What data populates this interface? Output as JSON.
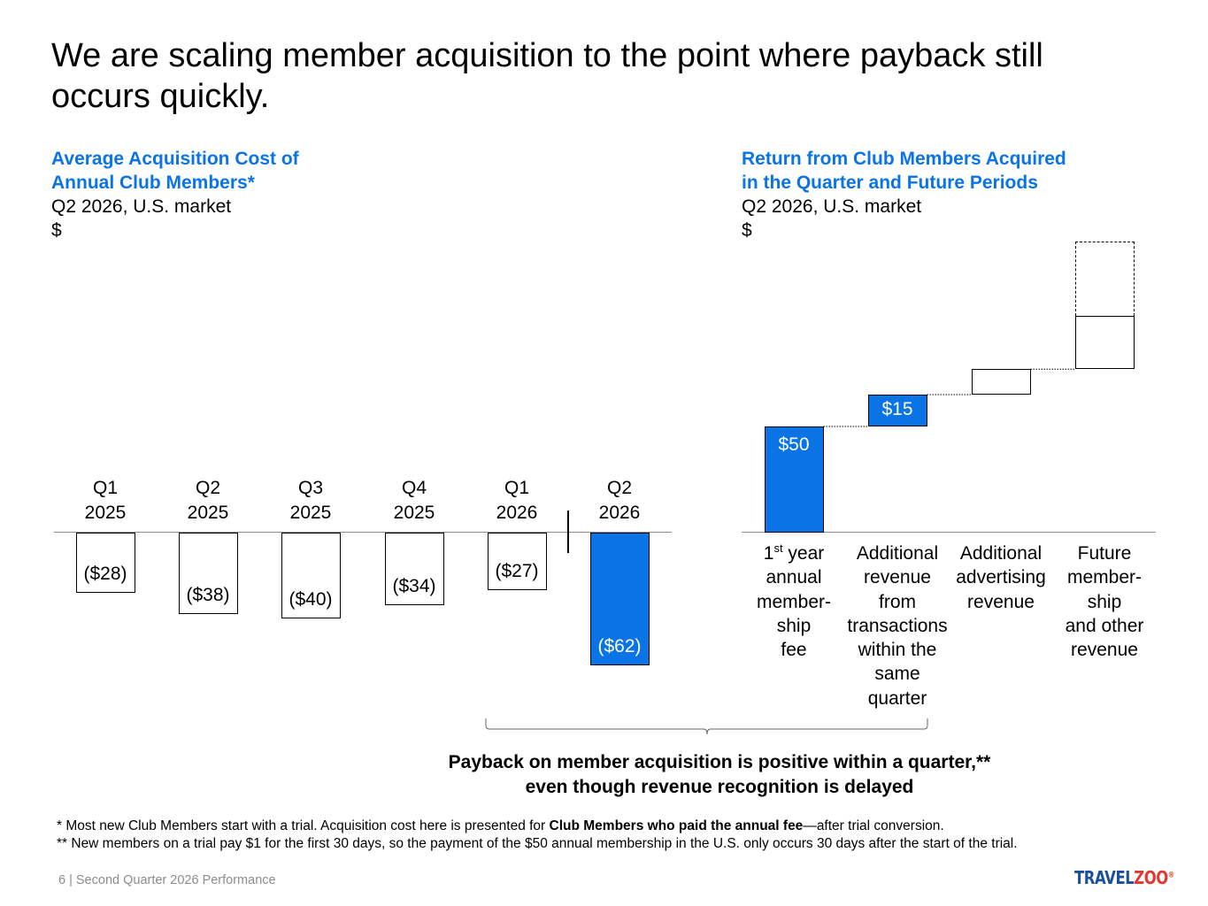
{
  "slide": {
    "title": "We are scaling member acquisition to the point where payback still occurs quickly."
  },
  "left_panel": {
    "heading_line1": "Average Acquisition Cost of",
    "heading_line2": "Annual Club Members*",
    "subtitle": "Q2 2026, U.S. market",
    "unit": "$"
  },
  "right_panel": {
    "heading_line1": "Return from Club Members Acquired",
    "heading_line2": "in the Quarter and Future Periods",
    "subtitle": "Q2 2026, U.S. market",
    "unit": "$"
  },
  "chart_data": [
    {
      "type": "bar",
      "title": "Average Acquisition Cost of Annual Club Members*",
      "categories": [
        {
          "q": "Q1",
          "y": "2025"
        },
        {
          "q": "Q2",
          "y": "2025"
        },
        {
          "q": "Q3",
          "y": "2025"
        },
        {
          "q": "Q4",
          "y": "2025"
        },
        {
          "q": "Q1",
          "y": "2026"
        },
        {
          "q": "Q2",
          "y": "2026"
        }
      ],
      "values": [
        -28,
        -38,
        -40,
        -34,
        -27,
        -62
      ],
      "value_labels": [
        "($28)",
        "($38)",
        "($40)",
        "($34)",
        "($27)",
        "($62)"
      ],
      "highlight_index": 5,
      "highlight_color": "#0a74e6",
      "separator_before_index": 5
    },
    {
      "type": "bar",
      "subtype": "waterfall",
      "title": "Return from Club Members Acquired in the Quarter and Future Periods",
      "categories": [
        [
          "1st year",
          "annual",
          "member-",
          "ship",
          "fee"
        ],
        [
          "Additional",
          "revenue",
          "from",
          "transactions",
          "within the",
          "same",
          "quarter"
        ],
        [
          "Additional",
          "advertising",
          "revenue"
        ],
        [
          "Future",
          "member-",
          "ship",
          "and other",
          "revenue"
        ]
      ],
      "values": [
        50,
        15,
        12,
        25
      ],
      "value_labels": [
        "$50",
        "$15",
        "",
        ""
      ],
      "future_dashed_extra": 35,
      "colors": [
        "#0a74e6",
        "#0a74e6",
        "#ffffff",
        "#ffffff"
      ]
    }
  ],
  "brace_note": {
    "line1": "Payback on member acquisition is positive within a quarter,**",
    "line2": "even though revenue recognition is delayed"
  },
  "footnotes": {
    "note1_pre": "* Most new Club Members start with a trial. Acquisition cost here is presented for ",
    "note1_bold": "Club Members who paid the annual fee",
    "note1_post": "—after trial conversion.",
    "note2": "** New members on a trial pay $1 for the first 30 days, so the payment of the $50 annual membership in the U.S. only occurs 30 days after the start of the trial."
  },
  "footer": {
    "page": "6 | Second Quarter 2026 Performance",
    "logo_part1": "TRAVEL",
    "logo_part2": "ZOO",
    "logo_mark": "®"
  }
}
